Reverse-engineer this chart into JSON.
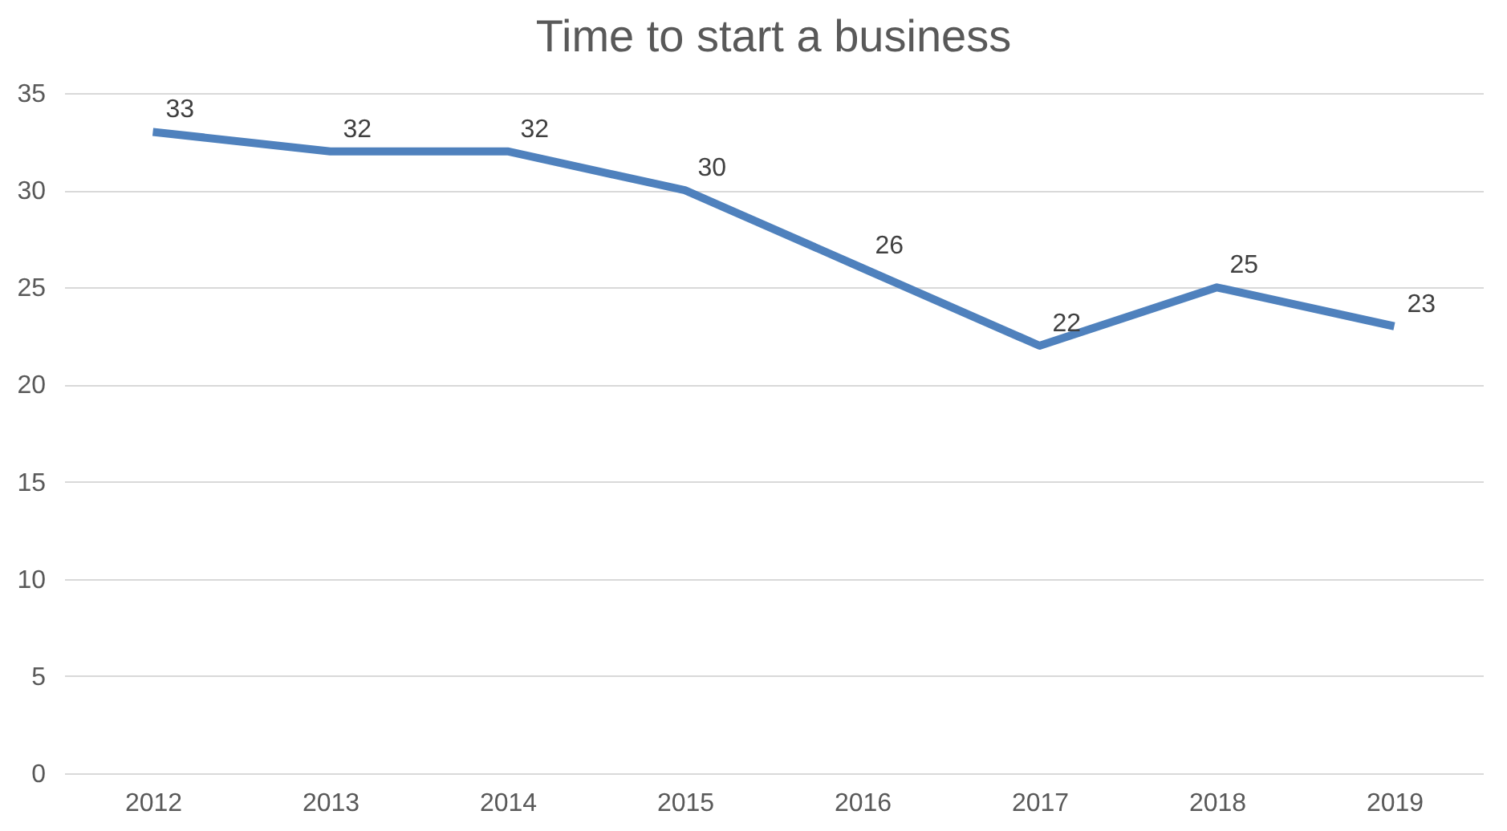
{
  "chart_data": {
    "type": "line",
    "title": "Time to start a business",
    "categories": [
      "2012",
      "2013",
      "2014",
      "2015",
      "2016",
      "2017",
      "2018",
      "2019"
    ],
    "values": [
      33,
      32,
      32,
      30,
      26,
      22,
      25,
      23
    ],
    "color": "#4f81bd",
    "ylim": [
      0,
      35
    ],
    "yticks": [
      0,
      5,
      10,
      15,
      20,
      25,
      30,
      35
    ],
    "grid": "y",
    "data_labels": true
  }
}
